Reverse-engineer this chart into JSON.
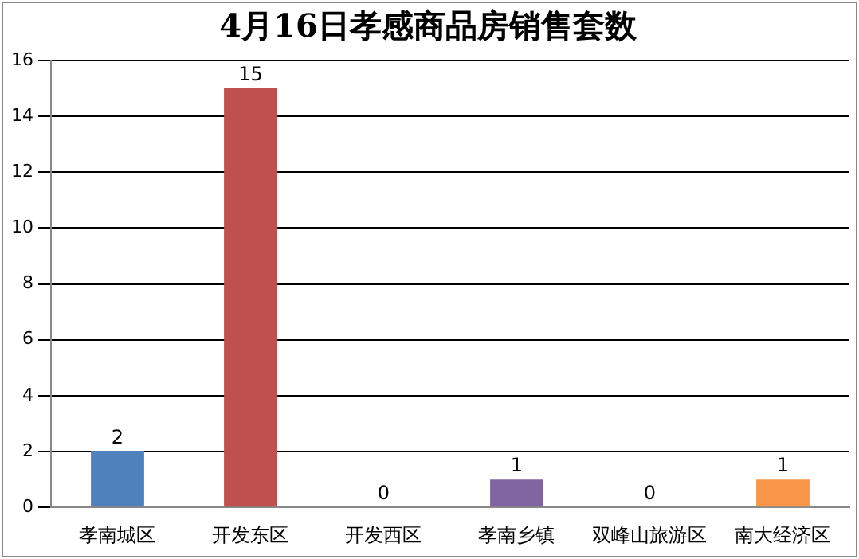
{
  "chart_data": {
    "type": "bar",
    "title": "4月16日孝感商品房销售套数",
    "categories": [
      "孝南城区",
      "开发东区",
      "开发西区",
      "孝南乡镇",
      "双峰山旅游区",
      "南大经济区"
    ],
    "values": [
      2,
      15,
      0,
      1,
      0,
      1
    ],
    "colors": [
      "#4f81bd",
      "#c0504d",
      "#9bbb59",
      "#8064a2",
      "#4bacc6",
      "#f79646"
    ],
    "ylim": [
      0,
      16
    ],
    "yticks": [
      0,
      2,
      4,
      6,
      8,
      10,
      12,
      14,
      16
    ],
    "grid": "y",
    "data_labels": true,
    "legend": false
  }
}
